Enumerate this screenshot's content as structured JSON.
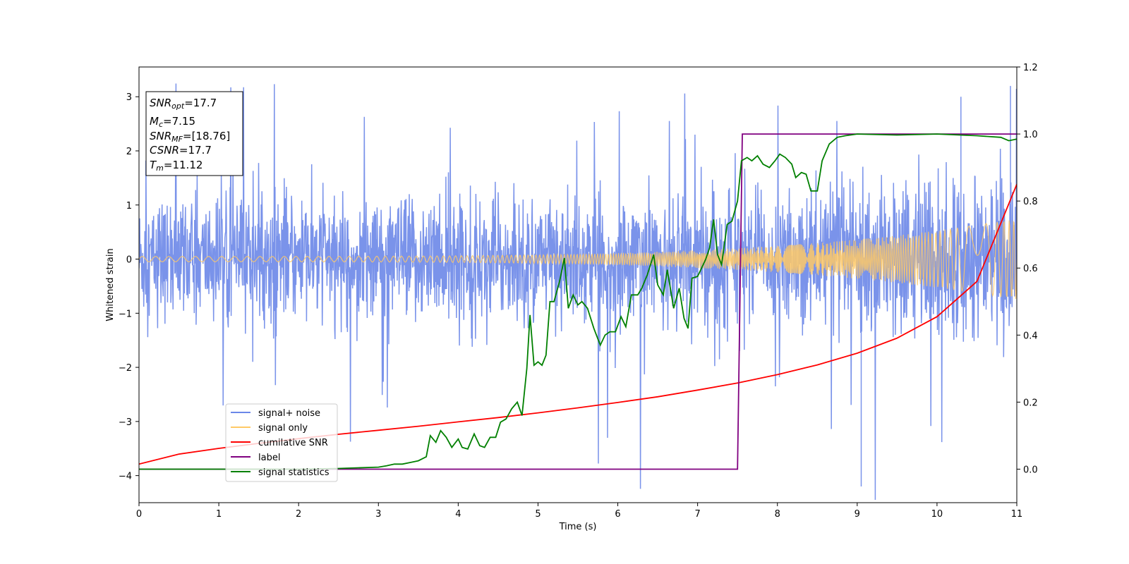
{
  "chart_data": {
    "type": "line",
    "xlabel": "Time (s)",
    "ylabel": "Whitened strain",
    "xlim": [
      0,
      11
    ],
    "ylim": [
      -4.5,
      3.55
    ],
    "y2lim": [
      -0.1,
      1.2
    ],
    "x_ticks": [
      0,
      1,
      2,
      3,
      4,
      5,
      6,
      7,
      8,
      9,
      10,
      11
    ],
    "y_ticks": [
      -4,
      -3,
      -2,
      -1,
      0,
      1,
      2,
      3
    ],
    "y2_ticks": [
      0.0,
      0.2,
      0.4,
      0.6,
      0.8,
      1.0,
      1.2
    ],
    "legend_position": "lower-left",
    "info_box": {
      "snr_opt": {
        "main": "SNR",
        "sub": "opt",
        "value": "=17.7"
      },
      "mc": {
        "main": "M",
        "sub": "c",
        "value": "=7.15"
      },
      "snr_mf": {
        "main": "SNR",
        "sub": "MF",
        "value": "=[18.76]"
      },
      "csnr": {
        "main": "CSNR",
        "sub": "",
        "value": "=17.7"
      },
      "tm": {
        "main": "T",
        "sub": "m",
        "value": "=11.12"
      }
    },
    "series": [
      {
        "name": "signal+ noise",
        "color": "#6b87e8",
        "axis": "left",
        "description_points": "noise band approx ±1.6 with spikes up to 3.2 and down to -4.2 (t≈9.05)",
        "envelope": {
          "typical": 1.6,
          "max": 3.2,
          "min": -4.2
        }
      },
      {
        "name": "signal only",
        "color": "#ffc966",
        "axis": "left",
        "chirp": {
          "t_start": 0,
          "t_end": 11,
          "amp_start": 0.05,
          "amp_end": 0.75
        }
      },
      {
        "name": "cumilative SNR",
        "color": "#ff0000",
        "axis": "right",
        "x": [
          0,
          0.5,
          1,
          1.5,
          2,
          2.5,
          3,
          3.5,
          4,
          4.5,
          5,
          5.5,
          6,
          6.5,
          7,
          7.5,
          8,
          8.5,
          9,
          9.5,
          10,
          10.5,
          11
        ],
        "y": [
          0.015,
          0.045,
          0.062,
          0.077,
          0.091,
          0.104,
          0.116,
          0.128,
          0.141,
          0.154,
          0.168,
          0.183,
          0.199,
          0.216,
          0.236,
          0.257,
          0.282,
          0.311,
          0.346,
          0.391,
          0.455,
          0.56,
          0.85
        ]
      },
      {
        "name": "label",
        "color": "#800080",
        "axis": "right",
        "x": [
          0,
          7.5,
          7.56,
          11
        ],
        "y": [
          0,
          0,
          1,
          1
        ]
      },
      {
        "name": "signal statistics",
        "color": "#008000",
        "axis": "right",
        "x": [
          0,
          1,
          2,
          2.5,
          3,
          3.1,
          3.2,
          3.3,
          3.4,
          3.5,
          3.6,
          3.65,
          3.72,
          3.78,
          3.85,
          3.92,
          4.0,
          4.05,
          4.12,
          4.2,
          4.27,
          4.33,
          4.4,
          4.47,
          4.53,
          4.6,
          4.67,
          4.74,
          4.8,
          4.86,
          4.9,
          4.95,
          5.0,
          5.05,
          5.1,
          5.15,
          5.2,
          5.27,
          5.33,
          5.38,
          5.44,
          5.5,
          5.55,
          5.62,
          5.7,
          5.78,
          5.84,
          5.9,
          5.97,
          6.04,
          6.1,
          6.17,
          6.25,
          6.3,
          6.37,
          6.45,
          6.5,
          6.57,
          6.62,
          6.7,
          6.77,
          6.83,
          6.88,
          6.93,
          7.0,
          7.05,
          7.1,
          7.15,
          7.2,
          7.25,
          7.3,
          7.37,
          7.43,
          7.5,
          7.55,
          7.62,
          7.68,
          7.75,
          7.82,
          7.9,
          7.97,
          8.03,
          8.1,
          8.18,
          8.23,
          8.3,
          8.36,
          8.42,
          8.5,
          8.56,
          8.65,
          8.75,
          8.85,
          9,
          9.5,
          10,
          10.5,
          10.8,
          10.9,
          11
        ],
        "y": [
          0.0,
          0.0,
          0.0,
          0.002,
          0.006,
          0.01,
          0.015,
          0.015,
          0.02,
          0.025,
          0.037,
          0.1,
          0.08,
          0.115,
          0.095,
          0.065,
          0.09,
          0.065,
          0.06,
          0.105,
          0.07,
          0.065,
          0.095,
          0.095,
          0.14,
          0.15,
          0.18,
          0.2,
          0.16,
          0.3,
          0.46,
          0.31,
          0.32,
          0.31,
          0.34,
          0.5,
          0.5,
          0.56,
          0.63,
          0.48,
          0.52,
          0.49,
          0.5,
          0.48,
          0.42,
          0.37,
          0.4,
          0.41,
          0.41,
          0.455,
          0.425,
          0.52,
          0.52,
          0.54,
          0.58,
          0.64,
          0.55,
          0.52,
          0.595,
          0.48,
          0.54,
          0.45,
          0.42,
          0.57,
          0.575,
          0.6,
          0.625,
          0.66,
          0.745,
          0.64,
          0.61,
          0.73,
          0.74,
          0.8,
          0.92,
          0.93,
          0.92,
          0.935,
          0.91,
          0.9,
          0.92,
          0.94,
          0.93,
          0.91,
          0.87,
          0.885,
          0.88,
          0.83,
          0.83,
          0.92,
          0.97,
          0.99,
          0.995,
          1.0,
          0.997,
          1.0,
          0.995,
          0.99,
          0.98,
          0.985
        ]
      }
    ]
  }
}
